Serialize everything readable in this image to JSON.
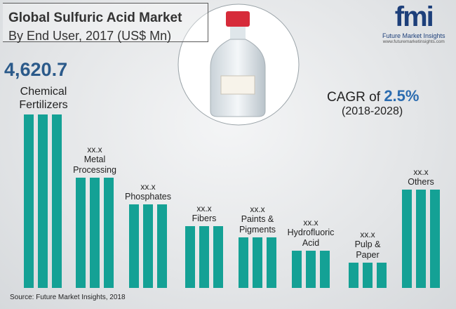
{
  "chart_data": {
    "type": "bar",
    "title": "Global Sulfuric Acid Market",
    "subtitle": "By End User, 2017 (US$ Mn)",
    "categories": [
      "Chemical Fertilizers",
      "Metal Processing",
      "Phosphates",
      "Fibers",
      "Paints & Pigments",
      "Hydrofluoric Acid",
      "Pulp & Paper",
      "Others"
    ],
    "values": [
      4620.7,
      2937,
      2226,
      1646,
      1347,
      991,
      673,
      2619
    ],
    "value_labels": [
      "4,620.7",
      "xx.x",
      "xx.x",
      "xx.x",
      "xx.x",
      "xx.x",
      "xx.x",
      "xx.x"
    ],
    "color": "#14a195",
    "cagr": {
      "prefix": "CAGR of",
      "value": "2.5%",
      "period": "(2018-2028)"
    },
    "source": "Source: Future Market Insights, 2018",
    "logo": {
      "mark": "fmi",
      "name": "Future Market Insights",
      "url": "www.futuremarketinsights.com"
    }
  }
}
